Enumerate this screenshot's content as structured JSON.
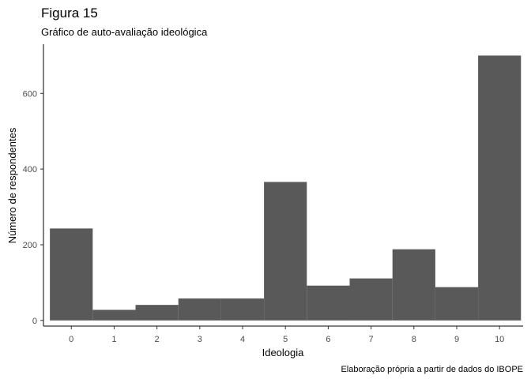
{
  "chart_data": {
    "type": "bar",
    "title": "Figura 15",
    "subtitle": "Gráfico de auto-avaliação ideológica",
    "xlabel": "Ideologia",
    "ylabel": "Número de respondentes",
    "caption": "Elaboração própria a partir de dados do IBOPE",
    "categories": [
      "0",
      "1",
      "2",
      "3",
      "4",
      "5",
      "6",
      "7",
      "8",
      "9",
      "10"
    ],
    "values": [
      243,
      28,
      41,
      58,
      58,
      366,
      92,
      111,
      188,
      88,
      700
    ],
    "y_ticks": [
      0,
      200,
      400,
      600
    ],
    "ylim": [
      -15,
      730
    ],
    "xlim": [
      -0.65,
      10.55
    ],
    "grid": false,
    "bar_color": "#595959"
  }
}
